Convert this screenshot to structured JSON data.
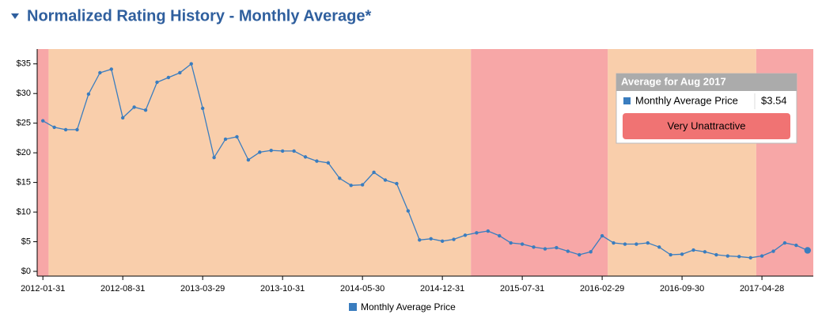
{
  "chart_data": {
    "type": "line",
    "title": "Normalized Rating History - Monthly Average*",
    "categories": [
      "2012-01-31",
      null,
      null,
      null,
      null,
      null,
      null,
      "2012-08-31",
      null,
      null,
      null,
      null,
      null,
      null,
      "2013-03-29",
      null,
      null,
      null,
      null,
      null,
      null,
      "2013-10-31",
      null,
      null,
      null,
      null,
      null,
      null,
      "2014-05-30",
      null,
      null,
      null,
      null,
      null,
      null,
      "2014-12-31",
      null,
      null,
      null,
      null,
      null,
      null,
      "2015-07-31",
      null,
      null,
      null,
      null,
      null,
      null,
      "2016-02-29",
      null,
      null,
      null,
      null,
      null,
      null,
      "2016-09-30",
      null,
      null,
      null,
      null,
      null,
      null,
      "2017-04-28",
      null,
      null,
      null,
      null
    ],
    "series": [
      {
        "name": "Monthly Average Price",
        "color": "#3a7dbf",
        "values": [
          25.4,
          24.3,
          23.9,
          23.9,
          29.9,
          33.5,
          34.1,
          25.9,
          27.7,
          27.2,
          31.9,
          32.7,
          33.5,
          35.0,
          27.5,
          19.2,
          22.3,
          22.7,
          18.8,
          20.1,
          20.4,
          20.3,
          20.3,
          19.3,
          18.6,
          18.3,
          15.7,
          14.5,
          14.6,
          16.7,
          15.4,
          14.8,
          10.2,
          5.3,
          5.5,
          5.1,
          5.4,
          6.1,
          6.5,
          6.8,
          6.0,
          4.8,
          4.6,
          4.1,
          3.8,
          4.0,
          3.4,
          2.8,
          3.3,
          6.0,
          4.8,
          4.6,
          4.6,
          4.8,
          4.1,
          2.8,
          2.9,
          3.6,
          3.3,
          2.8,
          2.6,
          2.5,
          2.3,
          2.6,
          3.4,
          4.8,
          4.4,
          3.54
        ]
      }
    ],
    "bands": [
      {
        "start": 0,
        "end": 0,
        "color": "#f7a7a7"
      },
      {
        "start": 1,
        "end": 37,
        "color": "#f9ceab"
      },
      {
        "start": 38,
        "end": 49,
        "color": "#f7a7a7"
      },
      {
        "start": 50,
        "end": 62,
        "color": "#f9ceab"
      },
      {
        "start": 63,
        "end": 67,
        "color": "#f7a7a7"
      }
    ],
    "ylim": [
      -0.8,
      37.5
    ],
    "yticks": [
      {
        "value": 0,
        "label": "$0"
      },
      {
        "value": 5,
        "label": "$5"
      },
      {
        "value": 10,
        "label": "$10"
      },
      {
        "value": 15,
        "label": "$15"
      },
      {
        "value": 20,
        "label": "$20"
      },
      {
        "value": 25,
        "label": "$25"
      },
      {
        "value": 30,
        "label": "$30"
      },
      {
        "value": 35,
        "label": "$35"
      }
    ],
    "tooltip": {
      "title": "Average for Aug 2017",
      "label": "Monthly Average Price",
      "value_label": "$3.54",
      "rating": "Very Unattractive"
    }
  }
}
